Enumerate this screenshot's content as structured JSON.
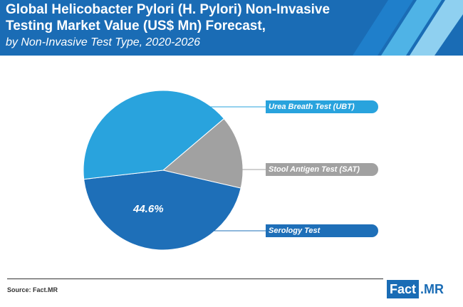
{
  "header": {
    "title_line1": "Global Helicobacter Pylori (H. Pylori) Non-Invasive",
    "title_line2": "Testing Market Value (US$ Mn) Forecast,",
    "subtitle": "by Non-Invasive Test Type, 2020-2026"
  },
  "colors": {
    "header_bg": "#1a6cb5",
    "ubt": "#29a3dd",
    "sat": "#a1a1a1",
    "serology": "#1e6fb8"
  },
  "chart_data": {
    "type": "pie",
    "title": "Global Helicobacter Pylori (H. Pylori) Non-Invasive Testing Market Value (US$ Mn) Forecast, by Non-Invasive Test Type, 2020-2026",
    "slices": [
      {
        "label": "Urea Breath Test (UBT)",
        "value": 40.6,
        "color": "#29a3dd"
      },
      {
        "label": "Stool Antigen Test (SAT)",
        "value": 14.8,
        "color": "#a1a1a1"
      },
      {
        "label": "Serology Test",
        "value": 44.6,
        "color": "#1e6fb8",
        "data_label": "44.6%"
      }
    ],
    "legend": "right"
  },
  "footer": {
    "source": "Source: Fact.MR",
    "logo_fact": "Fact",
    "logo_mr": ".MR"
  }
}
